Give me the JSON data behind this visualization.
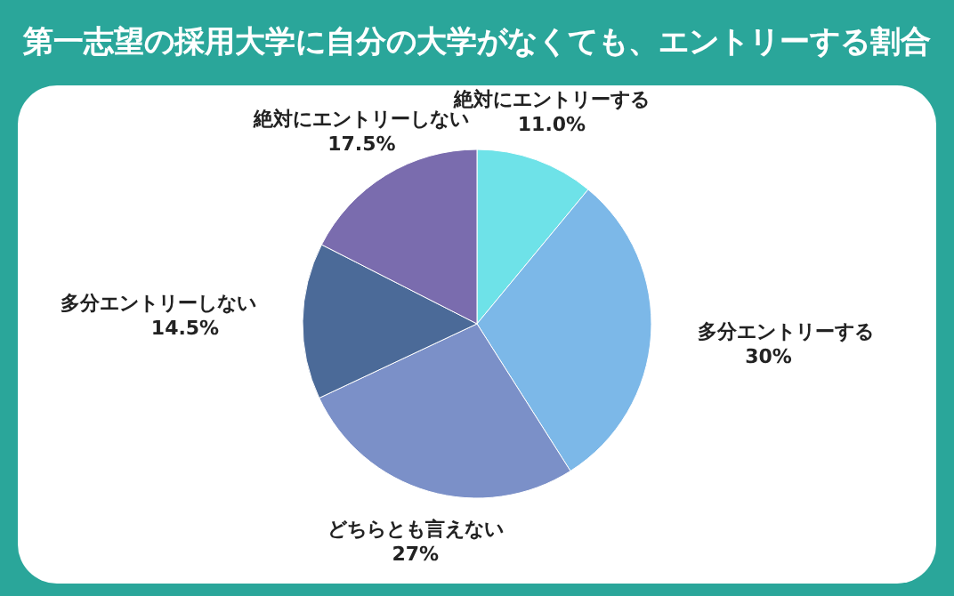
{
  "chart_data": {
    "type": "pie",
    "title": "第一志望の採用大学に自分の大学がなくても、エントリーする割合",
    "categories": [
      "絶対にエントリーする",
      "多分エントリーする",
      "どちらとも言えない",
      "多分エントリーしない",
      "絶対にエントリーしない"
    ],
    "values": [
      11.0,
      30,
      27,
      14.5,
      17.5
    ],
    "value_labels": [
      "11.0%",
      "30%",
      "27%",
      "14.5%",
      "17.5%"
    ],
    "colors": [
      "#6ee2e8",
      "#7cb8e8",
      "#7b90c8",
      "#4b6a98",
      "#7a6cae"
    ]
  }
}
